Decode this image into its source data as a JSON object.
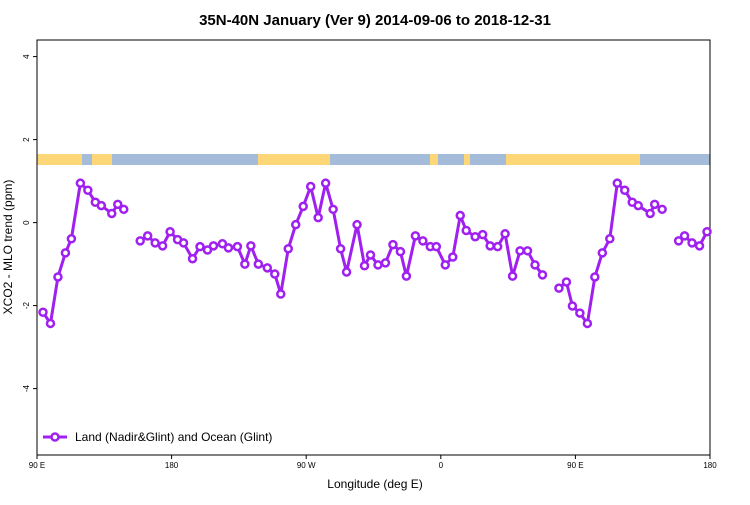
{
  "chart_data": {
    "type": "line",
    "title": "35N-40N January (Ver 9)   2014-09-06 to 2018-12-31",
    "xlabel": "Longitude (deg E)",
    "ylabel": "XCO2 - MLO trend (ppm)",
    "xlim": [
      90,
      540
    ],
    "ylim": [
      -5.6,
      4.4
    ],
    "xticks": [
      {
        "value": 90,
        "label": "90 E"
      },
      180,
      {
        "value": 270,
        "label": "90 W"
      },
      {
        "value": 360,
        "label": "0"
      },
      {
        "value": 450,
        "label": "90 E"
      },
      {
        "value": 540,
        "label": "180"
      }
    ],
    "yticks": [
      -4,
      -2,
      0,
      2,
      4
    ],
    "legend": "bottom-left",
    "x": [
      94,
      99,
      104,
      109,
      113,
      119,
      124,
      129,
      133,
      140,
      144,
      148,
      153,
      159,
      164,
      169,
      174,
      179,
      184,
      188,
      194,
      199,
      204,
      208,
      214,
      218,
      224,
      229,
      233,
      238,
      244,
      249,
      253,
      258,
      263,
      268,
      273,
      278,
      283,
      288,
      293,
      297,
      304,
      309,
      313,
      318,
      323,
      328,
      333,
      337,
      343,
      348,
      353,
      357,
      363,
      368,
      373,
      377,
      383,
      388,
      393,
      398,
      403,
      408,
      413,
      418,
      423,
      428,
      433,
      439,
      444,
      448,
      453,
      458,
      463,
      468,
      473,
      478,
      483,
      488,
      492,
      500,
      503,
      508,
      513,
      519,
      523,
      528,
      533,
      538
    ],
    "series": [
      {
        "name": "Land (Nadir&Glint) and Ocean (Glint)",
        "color": "#a020f0",
        "values": [
          -2.16,
          -2.43,
          -1.31,
          -0.73,
          -0.39,
          0.95,
          0.78,
          0.49,
          0.41,
          0.22,
          0.44,
          0.32,
          null,
          -0.44,
          -0.32,
          -0.49,
          -0.56,
          -0.22,
          -0.41,
          -0.49,
          -0.87,
          -0.58,
          -0.66,
          -0.56,
          -0.51,
          -0.61,
          -0.58,
          -1.0,
          -0.56,
          -1.0,
          -1.09,
          -1.24,
          -1.72,
          -0.63,
          -0.05,
          0.39,
          0.87,
          0.12,
          0.95,
          0.32,
          -0.63,
          -1.19,
          -0.05,
          -1.04,
          -0.78,
          -1.02,
          -0.97,
          -0.53,
          -0.7,
          -1.29,
          -0.32,
          -0.44,
          -0.58,
          -0.58,
          -1.02,
          -0.83,
          0.17,
          -0.19,
          -0.34,
          -0.29,
          -0.56,
          -0.58,
          -0.27,
          -1.29,
          -0.68,
          -0.68,
          -1.02,
          -1.26,
          null,
          -1.58,
          -1.43,
          -2.01,
          -2.18,
          -2.43,
          -1.31,
          -0.73,
          -0.39,
          0.95,
          0.78,
          0.49,
          0.41,
          0.22,
          0.44,
          0.32,
          null,
          -0.44,
          -0.32,
          -0.49,
          -0.56,
          -0.22
        ]
      }
    ]
  }
}
